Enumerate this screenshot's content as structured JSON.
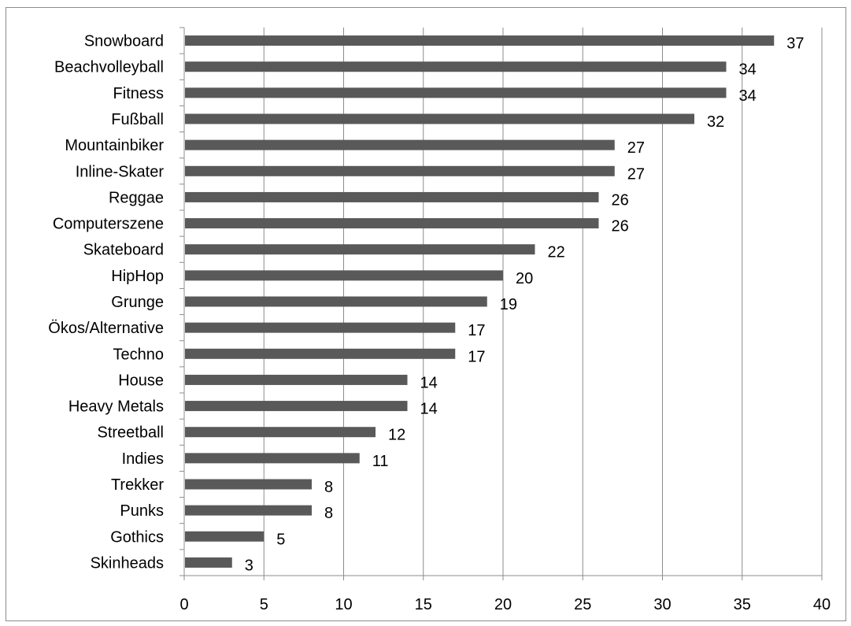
{
  "chart_data": {
    "type": "bar",
    "orientation": "horizontal",
    "categories": [
      "Snowboard",
      "Beachvolleyball",
      "Fitness",
      "Fußball",
      "Mountainbiker",
      "Inline-Skater",
      "Reggae",
      "Computerszene",
      "Skateboard",
      "HipHop",
      "Grunge",
      "Ökos/Alternative",
      "Techno",
      "House",
      "Heavy Metals",
      "Streetball",
      "Indies",
      "Trekker",
      "Punks",
      "Gothics",
      "Skinheads"
    ],
    "values": [
      37,
      34,
      34,
      32,
      27,
      27,
      26,
      26,
      22,
      20,
      19,
      17,
      17,
      14,
      14,
      12,
      11,
      8,
      8,
      5,
      3
    ],
    "data_labels": [
      "37",
      "34",
      "34",
      "32",
      "27",
      "27",
      "26",
      "26",
      "22",
      "20",
      "19",
      "17",
      "17",
      "14",
      "14",
      "12",
      "11",
      "8",
      "8",
      "5",
      "3"
    ],
    "xticks": [
      "0",
      "5",
      "10",
      "15",
      "20",
      "25",
      "30",
      "35",
      "40"
    ],
    "xlim": [
      0,
      40
    ],
    "title": "",
    "xlabel": "",
    "ylabel": "",
    "grid": "vertical",
    "legend": "none",
    "bar_color": "#595959",
    "grid_color": "#8c8c8c"
  }
}
